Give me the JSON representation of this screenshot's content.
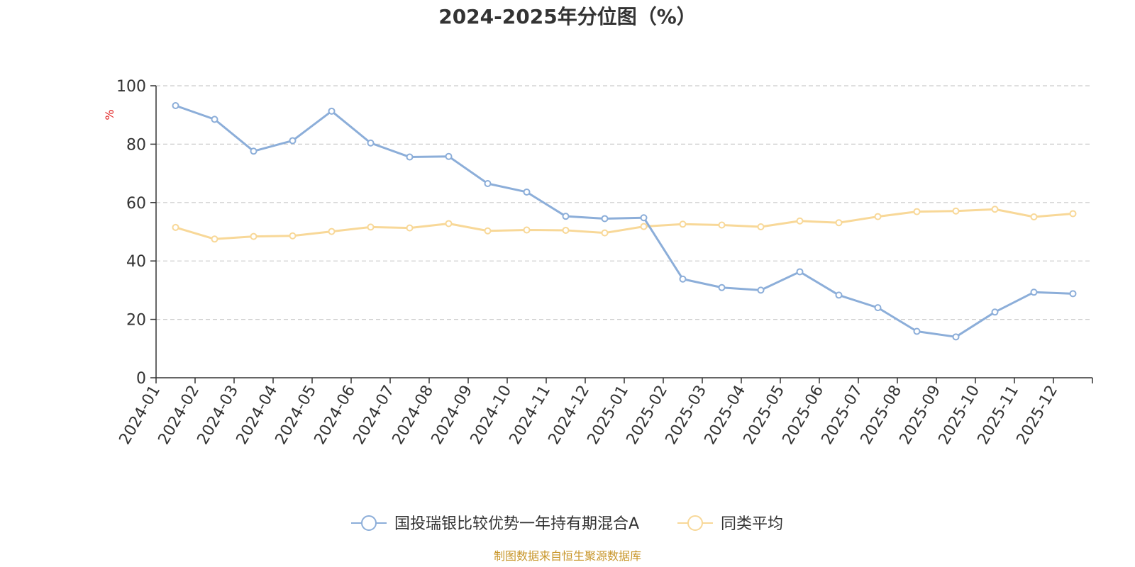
{
  "chart_data": {
    "type": "line",
    "title": "2024-2025年分位图（%）",
    "ylabel": "%",
    "ylim": [
      0,
      100
    ],
    "yticks": [
      0,
      20,
      40,
      60,
      80,
      100
    ],
    "grid": true,
    "legend_position": "bottom",
    "categories": [
      "2024-01",
      "2024-02",
      "2024-03",
      "2024-04",
      "2024-05",
      "2024-06",
      "2024-07",
      "2024-08",
      "2024-09",
      "2024-10",
      "2024-11",
      "2024-12",
      "2025-01",
      "2025-02",
      "2025-03",
      "2025-04",
      "2025-05",
      "2025-06",
      "2025-07",
      "2025-08",
      "2025-09",
      "2025-10",
      "2025-11",
      "2025-12"
    ],
    "series": [
      {
        "name": "国投瑞银比较优势一年持有期混合A",
        "color": "#8caed9",
        "values": [
          93.2,
          88.5,
          77.6,
          81.2,
          91.3,
          80.4,
          75.6,
          75.8,
          66.5,
          63.6,
          55.3,
          54.5,
          54.8,
          33.8,
          30.9,
          30.0,
          36.3,
          28.3,
          24.0,
          15.9,
          14.0,
          22.5,
          29.3,
          28.8
        ]
      },
      {
        "name": "同类平均",
        "color": "#f8d898",
        "values": [
          51.5,
          47.5,
          48.4,
          48.6,
          50.1,
          51.6,
          51.3,
          52.8,
          50.3,
          50.6,
          50.5,
          49.6,
          51.8,
          52.6,
          52.3,
          51.7,
          53.7,
          53.1,
          55.2,
          56.9,
          57.1,
          57.7,
          55.1,
          56.2
        ]
      }
    ]
  },
  "source_text": "制图数据来自恒生聚源数据库"
}
